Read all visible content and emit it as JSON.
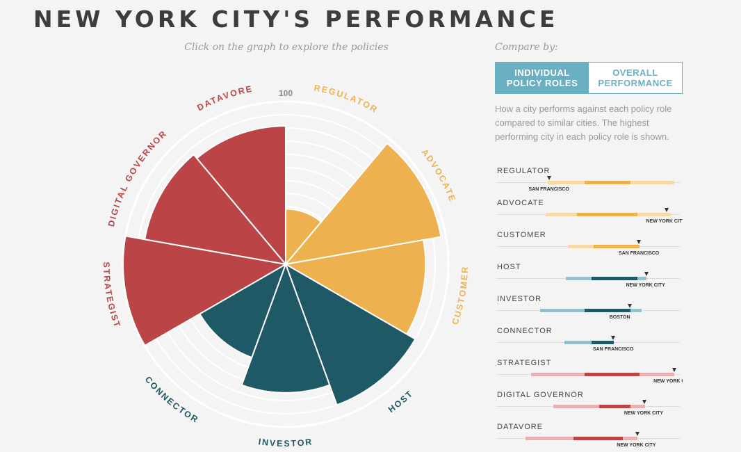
{
  "title": "NEW YORK CITY'S PERFORMANCE",
  "instruction": "Click on the graph to explore the policies",
  "compare_by": {
    "label": "Compare by:",
    "options": [
      "INDIVIDUAL\nPOLICY ROLES",
      "OVERALL\nPERFORMANCE"
    ],
    "active": 0
  },
  "description": "How a city performs against each policy role compared to similar cities. The highest performing city in each policy role is shown.",
  "chart_data": {
    "type": "polar-area",
    "max_label": "100",
    "categories": [
      "REGULATOR",
      "ADVOCATE",
      "CUSTOMER",
      "HOST",
      "INVESTOR",
      "CONNECTOR",
      "STRATEGIST",
      "DIGITAL GOVERNOR",
      "DATAVORE"
    ],
    "values": [
      34,
      97,
      86,
      92,
      79,
      61,
      100,
      88,
      85
    ],
    "colors": [
      "#edb24f",
      "#edb24f",
      "#edb24f",
      "#1f5966",
      "#1f5966",
      "#1f5966",
      "#bb4546",
      "#bb4546",
      "#bb4546"
    ],
    "ylim": [
      0,
      100
    ]
  },
  "roles": [
    {
      "name": "REGULATOR",
      "city": "SAN FRANCISCO",
      "light_color": "#f6d9a7",
      "dark_color": "#edb24f",
      "range": [
        0.28,
        0.97
      ],
      "iqr": [
        0.48,
        0.73
      ],
      "top": 0.29
    },
    {
      "name": "ADVOCATE",
      "city": "NEW YORK CITY",
      "light_color": "#f6d9a7",
      "dark_color": "#edb24f",
      "range": [
        0.27,
        0.95
      ],
      "iqr": [
        0.44,
        0.77
      ],
      "top": 0.93
    },
    {
      "name": "CUSTOMER",
      "city": "SAN FRANCISCO",
      "light_color": "#f6d9a7",
      "dark_color": "#edb24f",
      "range": [
        0.39,
        0.78
      ],
      "iqr": [
        0.53,
        0.78
      ],
      "top": 0.78
    },
    {
      "name": "HOST",
      "city": "NEW YORK CITY",
      "light_color": "#99bfca",
      "dark_color": "#1f5966",
      "range": [
        0.38,
        0.82
      ],
      "iqr": [
        0.52,
        0.77
      ],
      "top": 0.82
    },
    {
      "name": "INVESTOR",
      "city": "BOSTON",
      "light_color": "#99bfca",
      "dark_color": "#1f5966",
      "range": [
        0.24,
        0.79
      ],
      "iqr": [
        0.48,
        0.73
      ],
      "top": 0.73
    },
    {
      "name": "CONNECTOR",
      "city": "SAN FRANCISCO",
      "light_color": "#99bfca",
      "dark_color": "#1f5966",
      "range": [
        0.37,
        0.63
      ],
      "iqr": [
        0.52,
        0.64
      ],
      "top": 0.64
    },
    {
      "name": "STRATEGIST",
      "city": "NEW YORK CITY",
      "light_color": "#e8b0b1",
      "dark_color": "#bb4546",
      "range": [
        0.19,
        0.97
      ],
      "iqr": [
        0.48,
        0.78
      ],
      "top": 0.97
    },
    {
      "name": "DIGITAL GOVERNOR",
      "city": "NEW YORK CITY",
      "light_color": "#e8b0b1",
      "dark_color": "#bb4546",
      "range": [
        0.31,
        0.81
      ],
      "iqr": [
        0.56,
        0.73
      ],
      "top": 0.81
    },
    {
      "name": "DATAVORE",
      "city": "NEW YORK CITY",
      "light_color": "#e8b0b1",
      "dark_color": "#bb4546",
      "range": [
        0.16,
        0.77
      ],
      "iqr": [
        0.42,
        0.69
      ],
      "top": 0.77
    }
  ]
}
